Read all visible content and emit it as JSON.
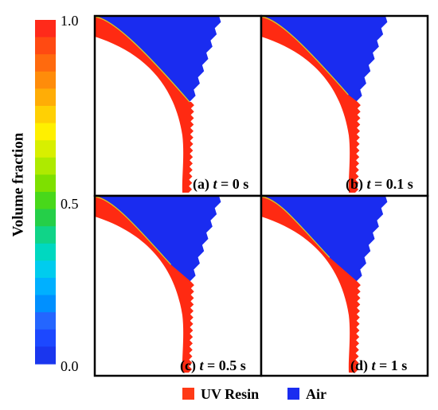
{
  "colorbar": {
    "title": "Volume fraction",
    "ticks": [
      {
        "label": "1.0",
        "value": 1.0
      },
      {
        "label": "0.5",
        "value": 0.5
      },
      {
        "label": "0.0",
        "value": 0.0
      }
    ],
    "colors": [
      "#ff2a1a",
      "#ff4a12",
      "#ff6a0e",
      "#ff8c0a",
      "#ffad06",
      "#ffd004",
      "#fff000",
      "#d8ef00",
      "#aeea00",
      "#7ee000",
      "#48d81a",
      "#25cf48",
      "#10d488",
      "#00d8c0",
      "#00ccee",
      "#00b0ff",
      "#0090ff",
      "#2466ff",
      "#1c48ff",
      "#1a36ee"
    ]
  },
  "panels": [
    {
      "id": "a",
      "prefix": "(a) ",
      "var": "t",
      "eq": " = 0 s",
      "interface_t": 0.0
    },
    {
      "id": "b",
      "prefix": "(b) ",
      "var": "t",
      "eq": " = 0.1 s",
      "interface_t": 0.25
    },
    {
      "id": "c",
      "prefix": "(c) ",
      "var": "t",
      "eq": " = 0.5 s",
      "interface_t": 0.6
    },
    {
      "id": "d",
      "prefix": "(d) ",
      "var": "t",
      "eq": " = 1 s",
      "interface_t": 0.85
    }
  ],
  "legend": [
    {
      "label": "UV Resin",
      "color": "#ff3a16"
    },
    {
      "label": "Air",
      "color": "#1a2cf0"
    }
  ],
  "colors": {
    "resin": "#ff2a12",
    "air": "#1a2cf0",
    "interface": "#cfd22a"
  }
}
